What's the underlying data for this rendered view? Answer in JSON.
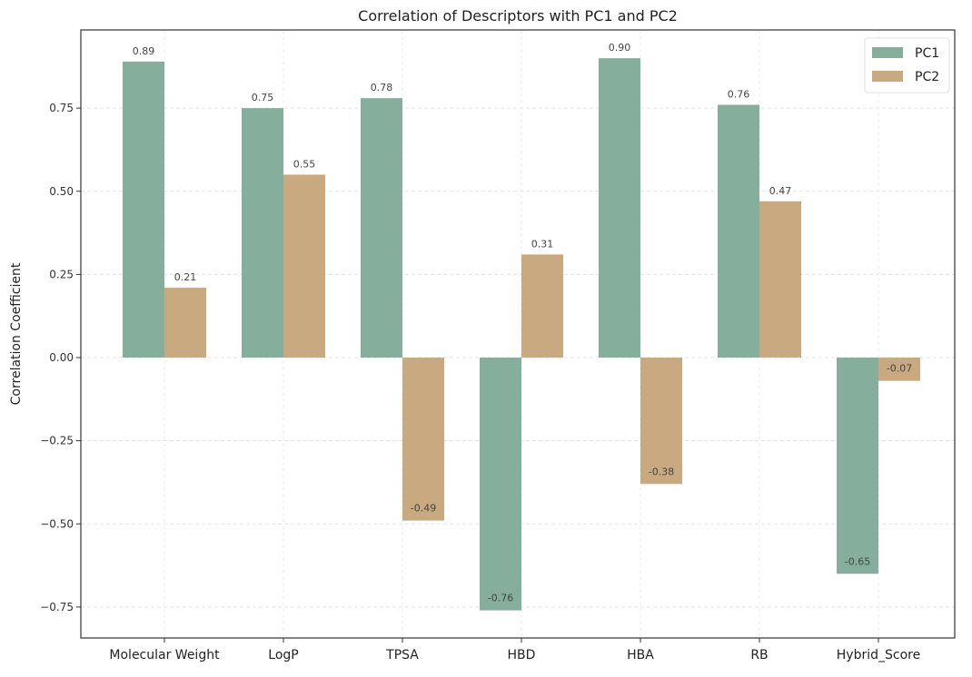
{
  "chart_data": {
    "type": "bar",
    "title": "Correlation of Descriptors with PC1 and PC2",
    "xlabel": "",
    "ylabel": "Correlation Coefficient",
    "categories": [
      "Molecular Weight",
      "LogP",
      "TPSA",
      "HBD",
      "HBA",
      "RB",
      "Hybrid_Score"
    ],
    "series": [
      {
        "name": "PC1",
        "color": "#86ae9c",
        "values": [
          0.89,
          0.75,
          0.78,
          -0.76,
          0.9,
          0.76,
          -0.65
        ]
      },
      {
        "name": "PC2",
        "color": "#c9aa80",
        "values": [
          0.21,
          0.55,
          -0.49,
          0.31,
          -0.38,
          0.47,
          -0.07
        ]
      }
    ],
    "data_labels": {
      "PC1": [
        "0.89",
        "0.75",
        "0.78",
        "-0.76",
        "0.90",
        "0.76",
        "-0.65"
      ],
      "PC2": [
        "0.21",
        "0.55",
        "-0.49",
        "0.31",
        "-0.38",
        "0.47",
        "-0.07"
      ]
    },
    "ylim": [
      -0.843,
      0.985
    ],
    "yticks": [
      -0.75,
      -0.5,
      -0.25,
      0.0,
      0.25,
      0.5,
      0.75
    ],
    "ytick_labels": [
      "−0.75",
      "−0.50",
      "−0.25",
      "0.00",
      "0.25",
      "0.50",
      "0.75"
    ],
    "grid": true,
    "legend": {
      "position": "top-right",
      "entries": [
        "PC1",
        "PC2"
      ]
    }
  }
}
